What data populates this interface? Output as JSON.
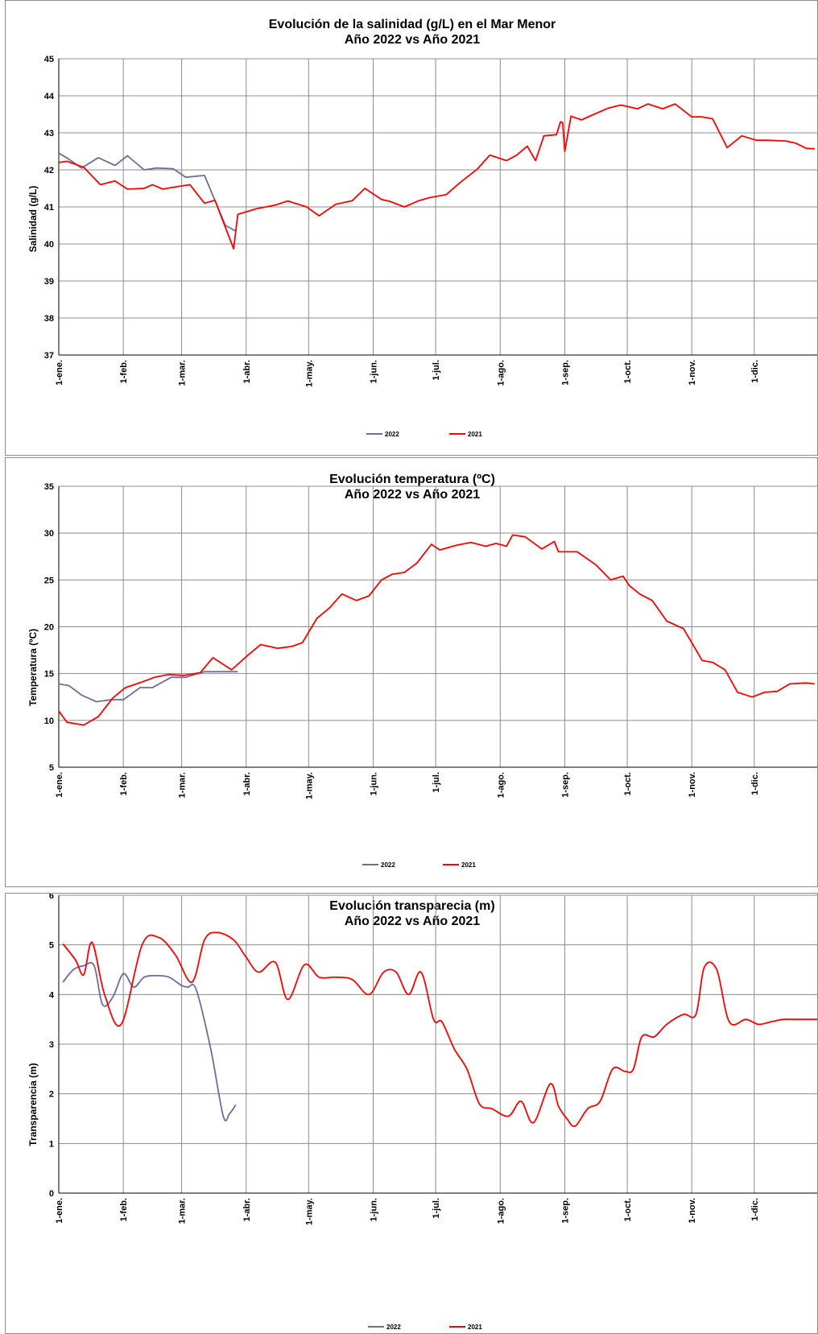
{
  "chart_data": [
    {
      "type": "line",
      "title_lines": [
        "Evolución de la salinidad (g/L) en el Mar Menor",
        "Año 2022 vs Año 2021"
      ],
      "xlabel": "",
      "ylabel": "Salinidad (g/L)",
      "ylim": [
        37,
        45
      ],
      "yticks": [
        "37",
        "38",
        "39",
        "40",
        "41",
        "42",
        "43",
        "44",
        "45"
      ],
      "xlim": [
        0,
        365
      ],
      "xtick_days": [
        0,
        31,
        59,
        90,
        120,
        151,
        181,
        212,
        243,
        273,
        304,
        334
      ],
      "x_unit": "day of year",
      "xtick_labels": [
        "1-ene.",
        "1-feb.",
        "1-mar.",
        "1-abr.",
        "1-may.",
        "1-jun.",
        "1-jul.",
        "1-ago.",
        "1-sep.",
        "1-oct.",
        "1-nov.",
        "1-dic."
      ],
      "grid": true,
      "legend_position": "bottom",
      "series": [
        {
          "name": "2022",
          "color": "#6f6b9e",
          "smooth": false,
          "x": [
            0,
            4,
            11,
            19,
            27,
            33,
            41,
            47,
            55,
            61,
            70,
            80,
            85
          ],
          "y": [
            42.45,
            42.32,
            42.05,
            42.33,
            42.12,
            42.38,
            42.0,
            42.05,
            42.03,
            41.8,
            41.85,
            40.5,
            40.35
          ]
        },
        {
          "name": "2021",
          "color": "#ff0000",
          "smooth": false,
          "x": [
            0,
            4,
            12,
            20,
            27,
            33,
            41,
            45,
            50,
            55,
            63,
            70,
            75,
            84,
            86,
            95,
            104,
            110,
            119,
            125,
            133,
            141,
            147,
            155,
            159,
            166,
            173,
            178,
            186,
            193,
            201,
            207,
            215,
            220,
            225,
            229,
            233,
            239,
            241,
            242,
            243,
            246,
            251,
            257,
            264,
            270,
            278,
            283,
            290,
            296,
            304,
            309,
            314,
            321,
            328,
            335,
            340,
            349,
            354,
            359,
            363
          ],
          "y": [
            42.2,
            42.23,
            42.07,
            41.6,
            41.7,
            41.48,
            41.5,
            41.6,
            41.48,
            41.53,
            41.6,
            41.1,
            41.18,
            39.87,
            40.8,
            40.95,
            41.05,
            41.16,
            41.0,
            40.76,
            41.07,
            41.17,
            41.5,
            41.2,
            41.15,
            41.0,
            41.17,
            41.25,
            41.33,
            41.67,
            42.02,
            42.4,
            42.25,
            42.4,
            42.64,
            42.25,
            42.92,
            42.95,
            43.3,
            43.27,
            42.5,
            43.45,
            43.35,
            43.5,
            43.67,
            43.75,
            43.65,
            43.78,
            43.65,
            43.78,
            43.43,
            43.43,
            43.38,
            42.6,
            42.92,
            42.8,
            42.8,
            42.78,
            42.72,
            42.58,
            42.57
          ]
        }
      ]
    },
    {
      "type": "line",
      "title_lines": [
        "Evolución temperatura (ºC)",
        "Año 2022 vs Año 2021"
      ],
      "xlabel": "",
      "ylabel": "Temperatura (ºC)",
      "ylim": [
        5,
        35
      ],
      "yticks": [
        "5",
        "10",
        "15",
        "20",
        "25",
        "30",
        "35"
      ],
      "xlim": [
        0,
        365
      ],
      "xtick_days": [
        0,
        31,
        59,
        90,
        120,
        151,
        181,
        212,
        243,
        273,
        304,
        334
      ],
      "x_unit": "day of year",
      "xtick_labels": [
        "1-ene.",
        "1-feb.",
        "1-mar.",
        "1-abr.",
        "1-may.",
        "1-jun.",
        "1-jul.",
        "1-ago.",
        "1-sep.",
        "1-oct.",
        "1-nov.",
        "1-dic."
      ],
      "grid": true,
      "legend_position": "bottom",
      "series": [
        {
          "name": "2022",
          "color": "#6f6b9e",
          "smooth": false,
          "x": [
            0,
            5,
            11,
            18,
            25,
            31,
            39,
            45,
            54,
            61,
            70,
            79,
            86
          ],
          "y": [
            13.9,
            13.7,
            12.7,
            12.0,
            12.2,
            12.2,
            13.5,
            13.5,
            14.6,
            14.6,
            15.2,
            15.2,
            15.2
          ],
          "note": ""
        },
        {
          "name": "2021",
          "color": "#ff0000",
          "smooth": false,
          "x": [
            0,
            4,
            12,
            19,
            26,
            32,
            40,
            46,
            53,
            60,
            68,
            74,
            83,
            91,
            97,
            105,
            112,
            117,
            124,
            130,
            136,
            143,
            149,
            155,
            160,
            166,
            172,
            179,
            183,
            191,
            198,
            205,
            210,
            215,
            218,
            224,
            232,
            238,
            240,
            249,
            258,
            265,
            271,
            274,
            279,
            285,
            292,
            300,
            304,
            309,
            314,
            320,
            326,
            333,
            339,
            345,
            351,
            359,
            363
          ],
          "y": [
            11.0,
            9.8,
            9.5,
            10.4,
            12.4,
            13.5,
            14.1,
            14.6,
            14.9,
            14.8,
            15.1,
            16.7,
            15.4,
            17.0,
            18.1,
            17.7,
            17.9,
            18.3,
            20.9,
            22.0,
            23.5,
            22.8,
            23.3,
            25.0,
            25.6,
            25.8,
            26.8,
            28.8,
            28.2,
            28.7,
            29.0,
            28.6,
            28.9,
            28.6,
            29.8,
            29.6,
            28.3,
            29.1,
            28.0,
            28.0,
            26.6,
            25.0,
            25.4,
            24.4,
            23.5,
            22.8,
            20.6,
            19.8,
            18.3,
            16.4,
            16.2,
            15.4,
            13.0,
            12.5,
            13.0,
            13.1,
            13.9,
            14.0,
            13.9
          ]
        }
      ]
    },
    {
      "type": "line",
      "title_lines": [
        "Evolución transparecia (m)",
        "Año 2022 vs Año 2021"
      ],
      "xlabel": "",
      "ylabel": "Transparencia (m)",
      "ylim": [
        0,
        6
      ],
      "yticks": [
        "0",
        "1",
        "2",
        "3",
        "4",
        "5",
        "6"
      ],
      "xlim": [
        0,
        365
      ],
      "xtick_days": [
        0,
        31,
        59,
        90,
        120,
        151,
        181,
        212,
        243,
        273,
        304,
        334
      ],
      "x_unit": "day of year",
      "xtick_labels": [
        "1-ene.",
        "1-feb.",
        "1-mar.",
        "1-abr.",
        "1-may.",
        "1-jun.",
        "1-jul.",
        "1-ago.",
        "1-sep.",
        "1-oct.",
        "1-nov.",
        "1-dic."
      ],
      "grid": true,
      "legend_position": "bottom",
      "series": [
        {
          "name": "2022",
          "color": "#6f6b9e",
          "smooth": true,
          "x": [
            2,
            7,
            12,
            17,
            21,
            26,
            31,
            36,
            41,
            47,
            53,
            59,
            62,
            66,
            73,
            79,
            82,
            85
          ],
          "y": [
            4.25,
            4.5,
            4.58,
            4.58,
            3.8,
            3.95,
            4.42,
            4.15,
            4.35,
            4.38,
            4.35,
            4.18,
            4.15,
            4.1,
            2.9,
            1.55,
            1.6,
            1.78
          ]
        },
        {
          "name": "2021",
          "color": "#ff0000",
          "smooth": true,
          "x": [
            2,
            8,
            12,
            16,
            22,
            30,
            40,
            48,
            56,
            64,
            70,
            76,
            84,
            90,
            96,
            104,
            110,
            118,
            125,
            133,
            141,
            149,
            156,
            162,
            168,
            174,
            180,
            184,
            190,
            196,
            202,
            208,
            216,
            222,
            228,
            236,
            240,
            244,
            248,
            254,
            260,
            266,
            272,
            276,
            280,
            286,
            292,
            300,
            306,
            310,
            316,
            322,
            330,
            336,
            342,
            348,
            354,
            360,
            365
          ],
          "y": [
            5.02,
            4.7,
            4.4,
            5.05,
            4.0,
            3.4,
            5.0,
            5.15,
            4.8,
            4.25,
            5.1,
            5.25,
            5.1,
            4.75,
            4.45,
            4.65,
            3.9,
            4.6,
            4.35,
            4.35,
            4.3,
            4.0,
            4.45,
            4.45,
            4.0,
            4.45,
            3.5,
            3.45,
            2.9,
            2.5,
            1.8,
            1.7,
            1.55,
            1.85,
            1.42,
            2.2,
            1.75,
            1.5,
            1.35,
            1.7,
            1.85,
            2.5,
            2.45,
            2.5,
            3.15,
            3.15,
            3.4,
            3.6,
            3.6,
            4.55,
            4.5,
            3.45,
            3.5,
            3.4,
            3.45,
            3.5,
            3.5,
            3.5,
            3.5
          ]
        }
      ]
    }
  ]
}
